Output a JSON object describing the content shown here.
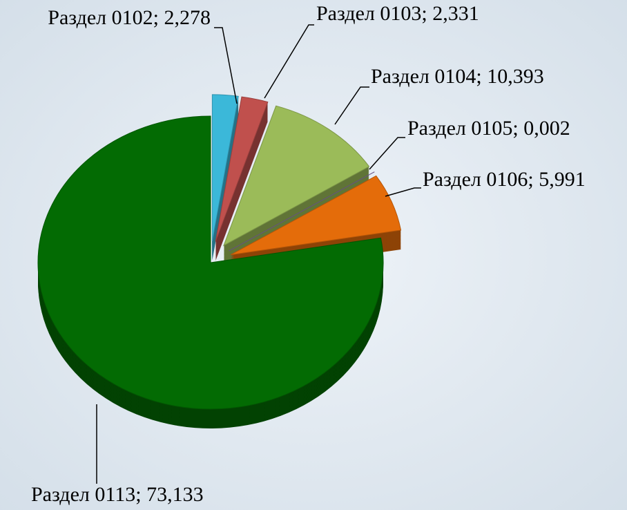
{
  "chart_data": {
    "type": "pie3d",
    "values": [
      2.278,
      2.331,
      10.393,
      0.002,
      5.991,
      73.133
    ],
    "value_labels": [
      "Раздел 0102; 2,278",
      "Раздел 0103; 2,331",
      "Раздел 0104; 10,393",
      "Раздел 0105; 0,002",
      "Раздел 0106; 5,991",
      "Раздел 0113; 73,133"
    ],
    "colors": [
      "#3bb8d9",
      "#c0504d",
      "#9bbb59",
      "#8064a2",
      "#e46c0a",
      "#036b03"
    ]
  }
}
